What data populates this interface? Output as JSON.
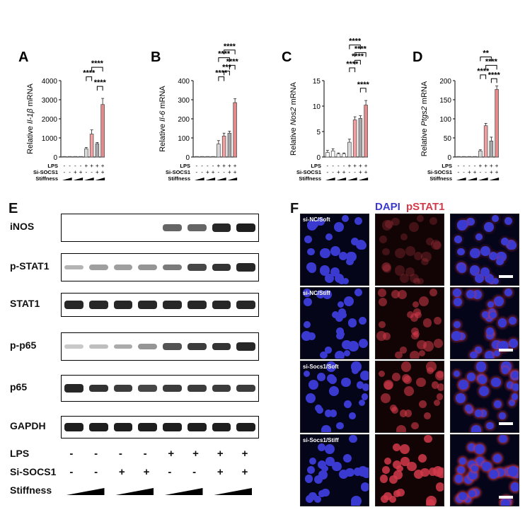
{
  "colors": {
    "dapi": "#3a3ad0",
    "pstat1": "#d23a4a",
    "band": "#151515"
  },
  "chart_data": [
    {
      "type": "bar",
      "panel": "A",
      "ylabel_parts": [
        "Relative ",
        "Il-1β",
        " mRNA"
      ],
      "yticks": [
        "0",
        "1000",
        "2000",
        "3000",
        "4000"
      ],
      "ylim": [
        0,
        4000
      ],
      "values": [
        5,
        5,
        10,
        10,
        430,
        1200,
        700,
        2750
      ],
      "errors": [
        0,
        0,
        0,
        0,
        70,
        220,
        60,
        320
      ],
      "significance": [
        {
          "from": 4,
          "to": 5,
          "label": "****",
          "level": 4200
        },
        {
          "from": 5,
          "to": 7,
          "label": "****",
          "level": 4700
        },
        {
          "from": 6,
          "to": 7,
          "label": "****",
          "level": 3700
        }
      ]
    },
    {
      "type": "bar",
      "panel": "B",
      "ylabel_parts": [
        "Relative ",
        "Il-6",
        " mRNA"
      ],
      "yticks": [
        "0",
        "100",
        "200",
        "300",
        "400"
      ],
      "ylim": [
        0,
        400
      ],
      "values": [
        2,
        2,
        3,
        3,
        68,
        110,
        125,
        285
      ],
      "errors": [
        0,
        0,
        0,
        0,
        18,
        15,
        10,
        20
      ],
      "significance": [
        {
          "from": 4,
          "to": 5,
          "label": "****",
          "level": 420
        },
        {
          "from": 5,
          "to": 6,
          "label": "***",
          "level": 450
        },
        {
          "from": 4,
          "to": 6,
          "label": "****",
          "level": 520
        },
        {
          "from": 6,
          "to": 7,
          "label": "****",
          "level": 480
        },
        {
          "from": 5,
          "to": 7,
          "label": "****",
          "level": 560
        }
      ]
    },
    {
      "type": "bar",
      "panel": "C",
      "ylabel_parts": [
        "Relative ",
        "Nos2",
        " mRNA"
      ],
      "yticks": [
        "0",
        "5",
        "10",
        "15"
      ],
      "ylim": [
        0,
        15
      ],
      "values": [
        0.9,
        1.2,
        0.6,
        0.6,
        2.9,
        7.3,
        7.6,
        10.2
      ],
      "errors": [
        0.4,
        0.4,
        0.2,
        0.2,
        0.6,
        0.6,
        0.5,
        0.9
      ],
      "significance": [
        {
          "from": 4,
          "to": 5,
          "label": "****",
          "level": 17.5
        },
        {
          "from": 6,
          "to": 7,
          "label": "****",
          "level": 13.5
        },
        {
          "from": 5,
          "to": 6,
          "label": "****",
          "level": 19.0
        },
        {
          "from": 5,
          "to": 7,
          "label": "****",
          "level": 20.5
        },
        {
          "from": 4,
          "to": 6,
          "label": "****",
          "level": 22.0
        }
      ]
    },
    {
      "type": "bar",
      "panel": "D",
      "ylabel_parts": [
        "Relative ",
        "Ptgs2",
        " mRNA"
      ],
      "yticks": [
        "0",
        "50",
        "100",
        "150",
        "200"
      ],
      "ylim": [
        0,
        200
      ],
      "values": [
        1,
        1,
        1,
        1,
        16,
        82,
        42,
        177
      ],
      "errors": [
        0,
        0,
        0,
        0,
        3,
        6,
        10,
        9
      ],
      "significance": [
        {
          "from": 4,
          "to": 5,
          "label": "****",
          "level": 215
        },
        {
          "from": 6,
          "to": 7,
          "label": "****",
          "level": 205
        },
        {
          "from": 5,
          "to": 7,
          "label": "****",
          "level": 240
        },
        {
          "from": 4,
          "to": 6,
          "label": "**",
          "level": 262
        }
      ]
    }
  ],
  "chart_table": {
    "rows": [
      "LPS",
      "Si-SOCS1",
      "Stiffness"
    ],
    "lps": [
      "-",
      "-",
      "-",
      "-",
      "+",
      "+",
      "+",
      "+"
    ],
    "sisocs1": [
      "-",
      "-",
      "+",
      "+",
      "-",
      "-",
      "+",
      "+"
    ]
  },
  "panels": {
    "A": "A",
    "B": "B",
    "C": "C",
    "D": "D",
    "E": "E",
    "F": "F"
  },
  "blot": {
    "rows": [
      {
        "name": "iNOS",
        "levels": [
          0,
          0,
          0,
          0,
          0.6,
          0.6,
          0.9,
          0.95
        ]
      },
      {
        "name": "p-STAT1",
        "levels": [
          0.2,
          0.3,
          0.3,
          0.35,
          0.5,
          0.75,
          0.85,
          0.9
        ]
      },
      {
        "name": "STAT1",
        "levels": [
          0.9,
          0.9,
          0.9,
          0.9,
          0.9,
          0.9,
          0.9,
          0.9
        ]
      },
      {
        "name": "p-p65",
        "levels": [
          0.1,
          0.15,
          0.25,
          0.35,
          0.7,
          0.8,
          0.85,
          0.9
        ]
      },
      {
        "name": "p65",
        "levels": [
          0.9,
          0.85,
          0.8,
          0.75,
          0.8,
          0.8,
          0.8,
          0.8
        ]
      },
      {
        "name": "GAPDH",
        "levels": [
          0.95,
          0.95,
          0.95,
          0.95,
          0.95,
          0.95,
          0.95,
          0.95
        ]
      }
    ],
    "conditions": {
      "lps_label": "LPS",
      "sisocs1_label": "Si-SOCS1",
      "stiffness_label": "Stiffness",
      "lps": [
        "-",
        "-",
        "-",
        "-",
        "+",
        "+",
        "+",
        "+"
      ],
      "sisocs1": [
        "-",
        "-",
        "+",
        "+",
        "-",
        "-",
        "+",
        "+"
      ]
    }
  },
  "micro": {
    "header_dapi": "DAPI",
    "header_pstat1": "pSTAT1",
    "rows": [
      {
        "label": "si-NC/Soft",
        "red_intensity": 0.25
      },
      {
        "label": "si-NC/Stiff",
        "red_intensity": 0.55
      },
      {
        "label": "si-Socs1/Soft",
        "red_intensity": 0.6
      },
      {
        "label": "si-Socs1/Stiff",
        "red_intensity": 0.85
      }
    ]
  }
}
